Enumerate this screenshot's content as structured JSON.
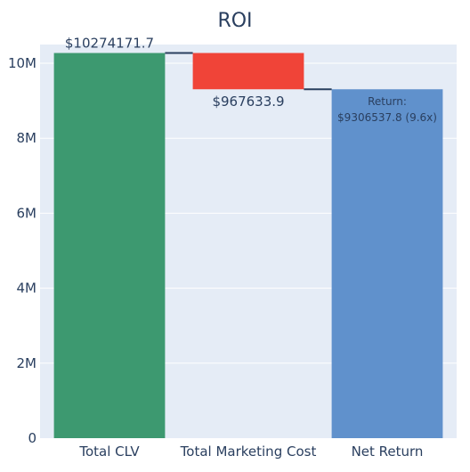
{
  "chart_data": {
    "type": "waterfall",
    "title": "ROI",
    "categories": [
      "Total CLV",
      "Total Marketing Cost",
      "Net Return"
    ],
    "steps": [
      {
        "category": "Total CLV",
        "measure": "absolute",
        "value": 10274171.7,
        "color": "#3d9970",
        "label": "$10274171.7",
        "label_position": "outside-top"
      },
      {
        "category": "Total Marketing Cost",
        "measure": "relative",
        "value": -967633.9,
        "color": "#f04438",
        "label": "$967633.9",
        "label_position": "outside-bottom"
      },
      {
        "category": "Net Return",
        "measure": "total",
        "value": 9306537.8,
        "color": "#6091cc",
        "label_lines": [
          "Return:",
          "$9306537.8 (9.6x)"
        ],
        "label_position": "inside-top"
      }
    ],
    "ylim": [
      0,
      10500000
    ],
    "yticks": [
      0,
      2000000,
      4000000,
      6000000,
      8000000,
      10000000
    ],
    "ytick_labels": [
      "0",
      "2M",
      "4M",
      "6M",
      "8M",
      "10M"
    ],
    "connector_color": "#2a3f5f",
    "plot_background": "#e5ecf6",
    "grid": true,
    "xlabel": "",
    "ylabel": ""
  }
}
